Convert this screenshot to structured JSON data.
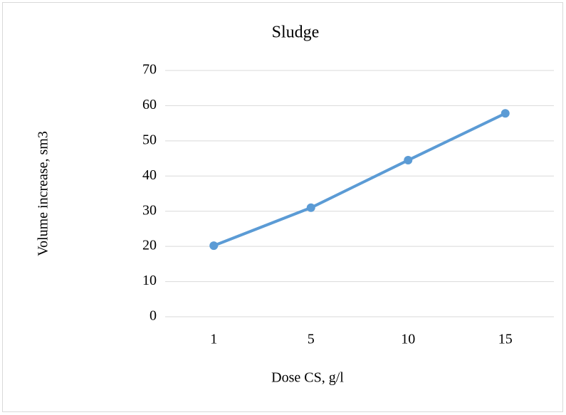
{
  "chart_data": {
    "type": "line",
    "title": "Sludge",
    "x_label": "Dose CS, g/l",
    "y_label": "Volume increase, sm3",
    "categories": [
      "1",
      "5",
      "10",
      "15"
    ],
    "values": [
      20.2,
      31,
      44.5,
      57.8
    ],
    "color": "#5b9bd5",
    "ylim": [
      0,
      70
    ],
    "yticks": [
      0,
      10,
      20,
      30,
      40,
      50,
      60,
      70
    ],
    "grid": true
  }
}
